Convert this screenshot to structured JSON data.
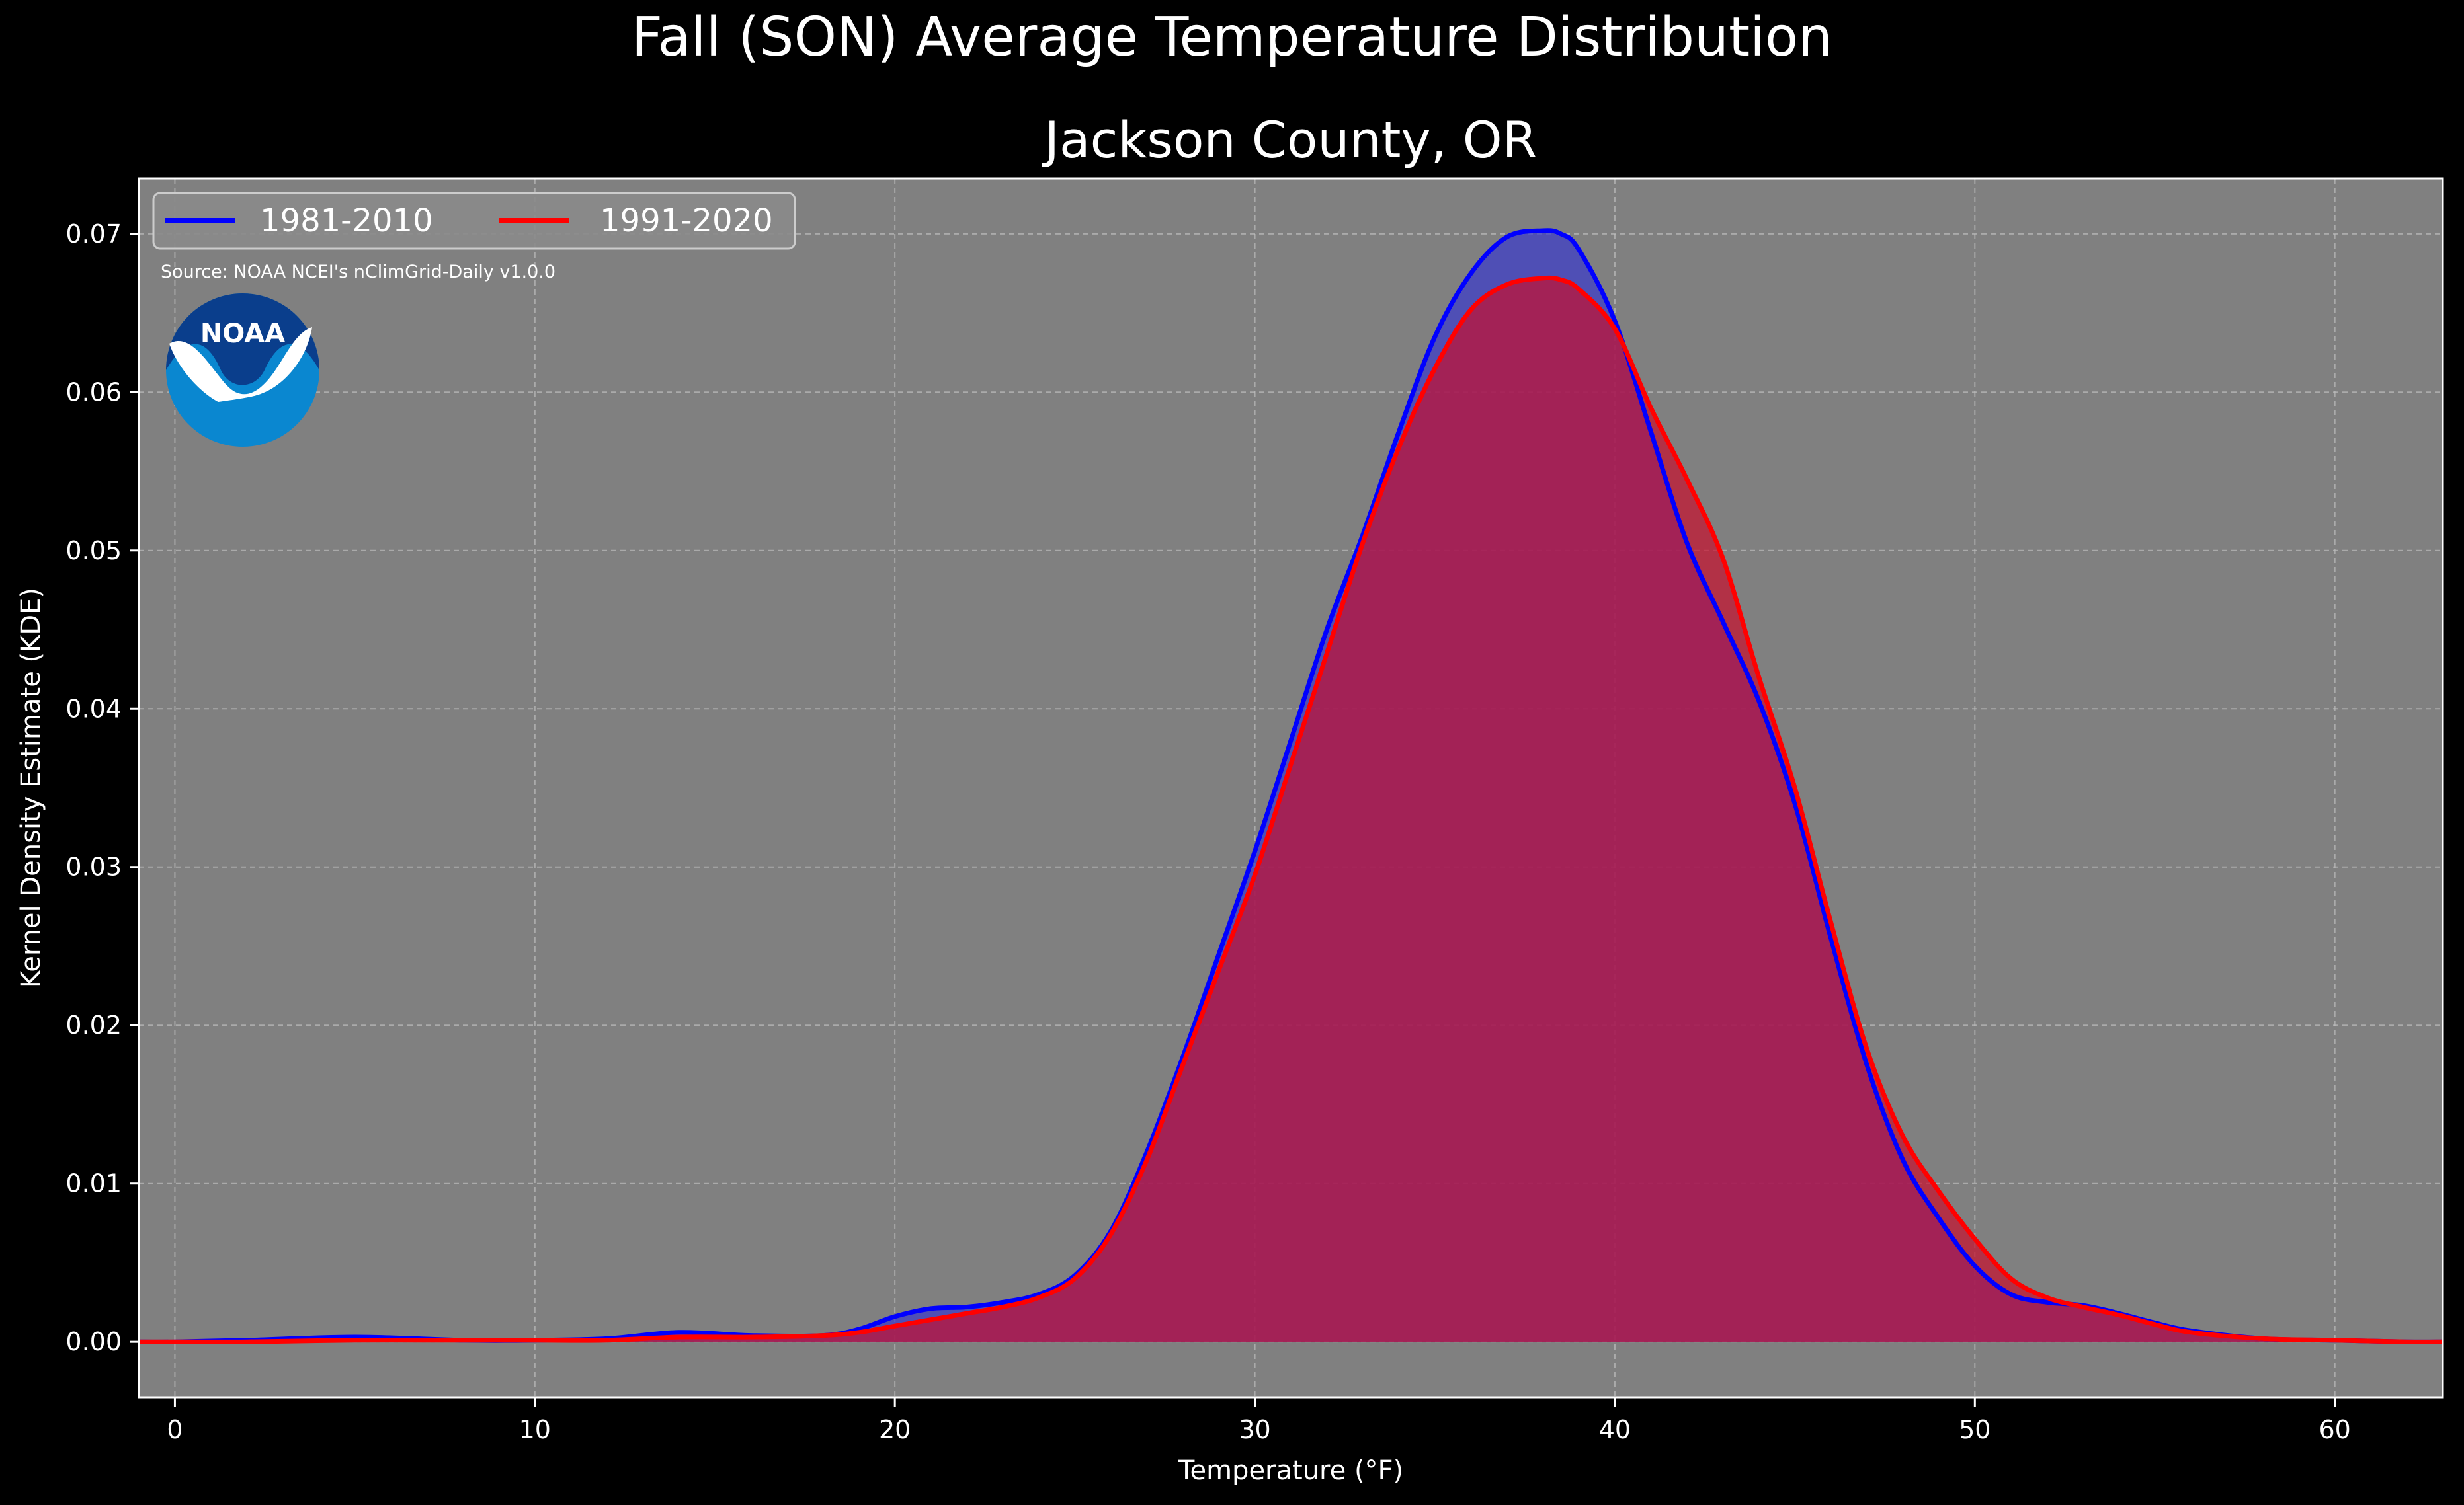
{
  "chart_data": {
    "type": "area",
    "title": "Fall (SON) Average Temperature Distribution",
    "subtitle": "Jackson County, OR",
    "xlabel": "Temperature (°F)",
    "ylabel": "Kernel Density Estimate (KDE)",
    "xlim": [
      -1,
      63
    ],
    "ylim": [
      -0.0035,
      0.0735
    ],
    "x_ticks": [
      0,
      10,
      20,
      30,
      40,
      50,
      60
    ],
    "y_ticks": [
      0.0,
      0.01,
      0.02,
      0.03,
      0.04,
      0.05,
      0.06,
      0.07
    ],
    "x_tick_labels": [
      "0",
      "10",
      "20",
      "30",
      "40",
      "50",
      "60"
    ],
    "y_tick_labels": [
      "0.00",
      "0.01",
      "0.02",
      "0.03",
      "0.04",
      "0.05",
      "0.06",
      "0.07"
    ],
    "grid": true,
    "legend_position": "top-left",
    "source_note": "Source: NOAA NCEI's nClimGrid-Daily v1.0.0",
    "logo_text": "NOAA",
    "x": [
      -1,
      0,
      2,
      5,
      8,
      10,
      12,
      14,
      16,
      18,
      19,
      20,
      21,
      22,
      23,
      24,
      25,
      26,
      27,
      28,
      29,
      30,
      31,
      32,
      33,
      34,
      35,
      36,
      37,
      38,
      38.5,
      39,
      40,
      41,
      42,
      43,
      44,
      45,
      46,
      47,
      48,
      49,
      50,
      51,
      52,
      53,
      54,
      55,
      56,
      58,
      60,
      62,
      63
    ],
    "series": [
      {
        "name": "1981-2010",
        "color": "#0000ff",
        "fill": "#3a3acc",
        "values": [
          0,
          0,
          0.0001,
          0.0003,
          0.0001,
          0.0001,
          0.0002,
          0.0006,
          0.0004,
          0.0004,
          0.0008,
          0.0016,
          0.0021,
          0.0022,
          0.0025,
          0.003,
          0.0042,
          0.007,
          0.012,
          0.018,
          0.0245,
          0.031,
          0.038,
          0.045,
          0.051,
          0.0575,
          0.0635,
          0.0675,
          0.0698,
          0.0702,
          0.07,
          0.069,
          0.0645,
          0.0575,
          0.0505,
          0.0455,
          0.0405,
          0.034,
          0.0255,
          0.0175,
          0.0115,
          0.0078,
          0.0048,
          0.003,
          0.0025,
          0.0023,
          0.0018,
          0.0012,
          0.0007,
          0.0002,
          0.0001,
          0,
          0
        ]
      },
      {
        "name": "1991-2020",
        "color": "#ff0000",
        "fill": "#c8102e",
        "values": [
          0,
          0,
          0,
          0.0001,
          0.0001,
          0.0001,
          0.0001,
          0.0003,
          0.0003,
          0.0004,
          0.0006,
          0.001,
          0.0014,
          0.0018,
          0.0022,
          0.0028,
          0.004,
          0.0068,
          0.0115,
          0.0175,
          0.0235,
          0.0295,
          0.0365,
          0.0435,
          0.0505,
          0.0565,
          0.0615,
          0.0652,
          0.0668,
          0.0672,
          0.0671,
          0.0665,
          0.064,
          0.059,
          0.0545,
          0.0495,
          0.042,
          0.035,
          0.0265,
          0.0185,
          0.013,
          0.0095,
          0.0065,
          0.004,
          0.0028,
          0.0022,
          0.0017,
          0.0011,
          0.0006,
          0.0002,
          0.0001,
          0,
          0
        ]
      }
    ]
  }
}
